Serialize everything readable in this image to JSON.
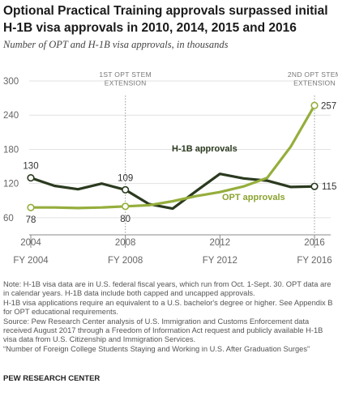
{
  "header": {
    "title": "Optional Practical Training approvals surpassed initial H-1B visa approvals in 2010, 2014, 2015 and 2016",
    "subtitle": "Number of OPT and H-1B visa approvals, in thousands"
  },
  "chart_data": {
    "type": "line",
    "title": "Optional Practical Training approvals surpassed initial H-1B visa approvals in 2010, 2014, 2015 and 2016",
    "subtitle": "Number of OPT and H-1B visa approvals, in thousands",
    "x": [
      2004,
      2005,
      2006,
      2007,
      2008,
      2009,
      2010,
      2011,
      2012,
      2013,
      2014,
      2015,
      2016
    ],
    "xlim": [
      2004,
      2016
    ],
    "ylim": [
      30,
      300
    ],
    "yticks": [
      60,
      120,
      180,
      240,
      300
    ],
    "grid": true,
    "x_tick_labels": [
      {
        "x": 2004,
        "top": "2004",
        "bottom": "FY 2004"
      },
      {
        "x": 2008,
        "top": "2008",
        "bottom": "FY 2008"
      },
      {
        "x": 2012,
        "top": "2012",
        "bottom": "FY 2012"
      },
      {
        "x": 2016,
        "top": "2016",
        "bottom": "FY 2016"
      }
    ],
    "series": [
      {
        "name": "H-1B approvals",
        "color": "#2b3a1f",
        "values": [
          130,
          116,
          110,
          120,
          109,
          84,
          76,
          107,
          137,
          129,
          125,
          114,
          115
        ],
        "labels": [
          {
            "x": 2004,
            "text": "130"
          },
          {
            "x": 2008,
            "text": "109"
          },
          {
            "x": 2016,
            "text": "115"
          }
        ]
      },
      {
        "name": "OPT approvals",
        "color": "#95ae3c",
        "values": [
          78,
          78,
          77,
          78,
          80,
          82,
          89,
          98,
          105,
          115,
          130,
          185,
          257
        ],
        "labels": [
          {
            "x": 2004,
            "text": "78"
          },
          {
            "x": 2008,
            "text": "80"
          },
          {
            "x": 2016,
            "text": "257"
          }
        ]
      }
    ],
    "annotations": [
      {
        "x": 2008,
        "lines": [
          "1ST OPT STEM",
          "EXTENSION"
        ]
      },
      {
        "x": 2016,
        "lines": [
          "2ND  OPT STEM",
          "EXTENSION"
        ]
      }
    ]
  },
  "notes": [
    "Note: H-1B visa data are in U.S. federal fiscal years, which run from Oct. 1-Sept. 30. OPT data are in calendar years. H-1B data include both capped and uncapped approvals.",
    "H-1B visa applications require an equivalent to a U.S. bachelor's degree or higher. See Appendix B for OPT educational requirements.",
    "Source: Pew Research Center analysis of U.S. Immigration and Customs Enforcement data received August 2017 through a Freedom of Information Act request and publicly available H-1B visa data from U.S. Citizenship and Immigration Services.",
    "“Number of Foreign College Students Staying and Working in U.S. After Graduation Surges”"
  ],
  "brand": "PEW RESEARCH CENTER"
}
